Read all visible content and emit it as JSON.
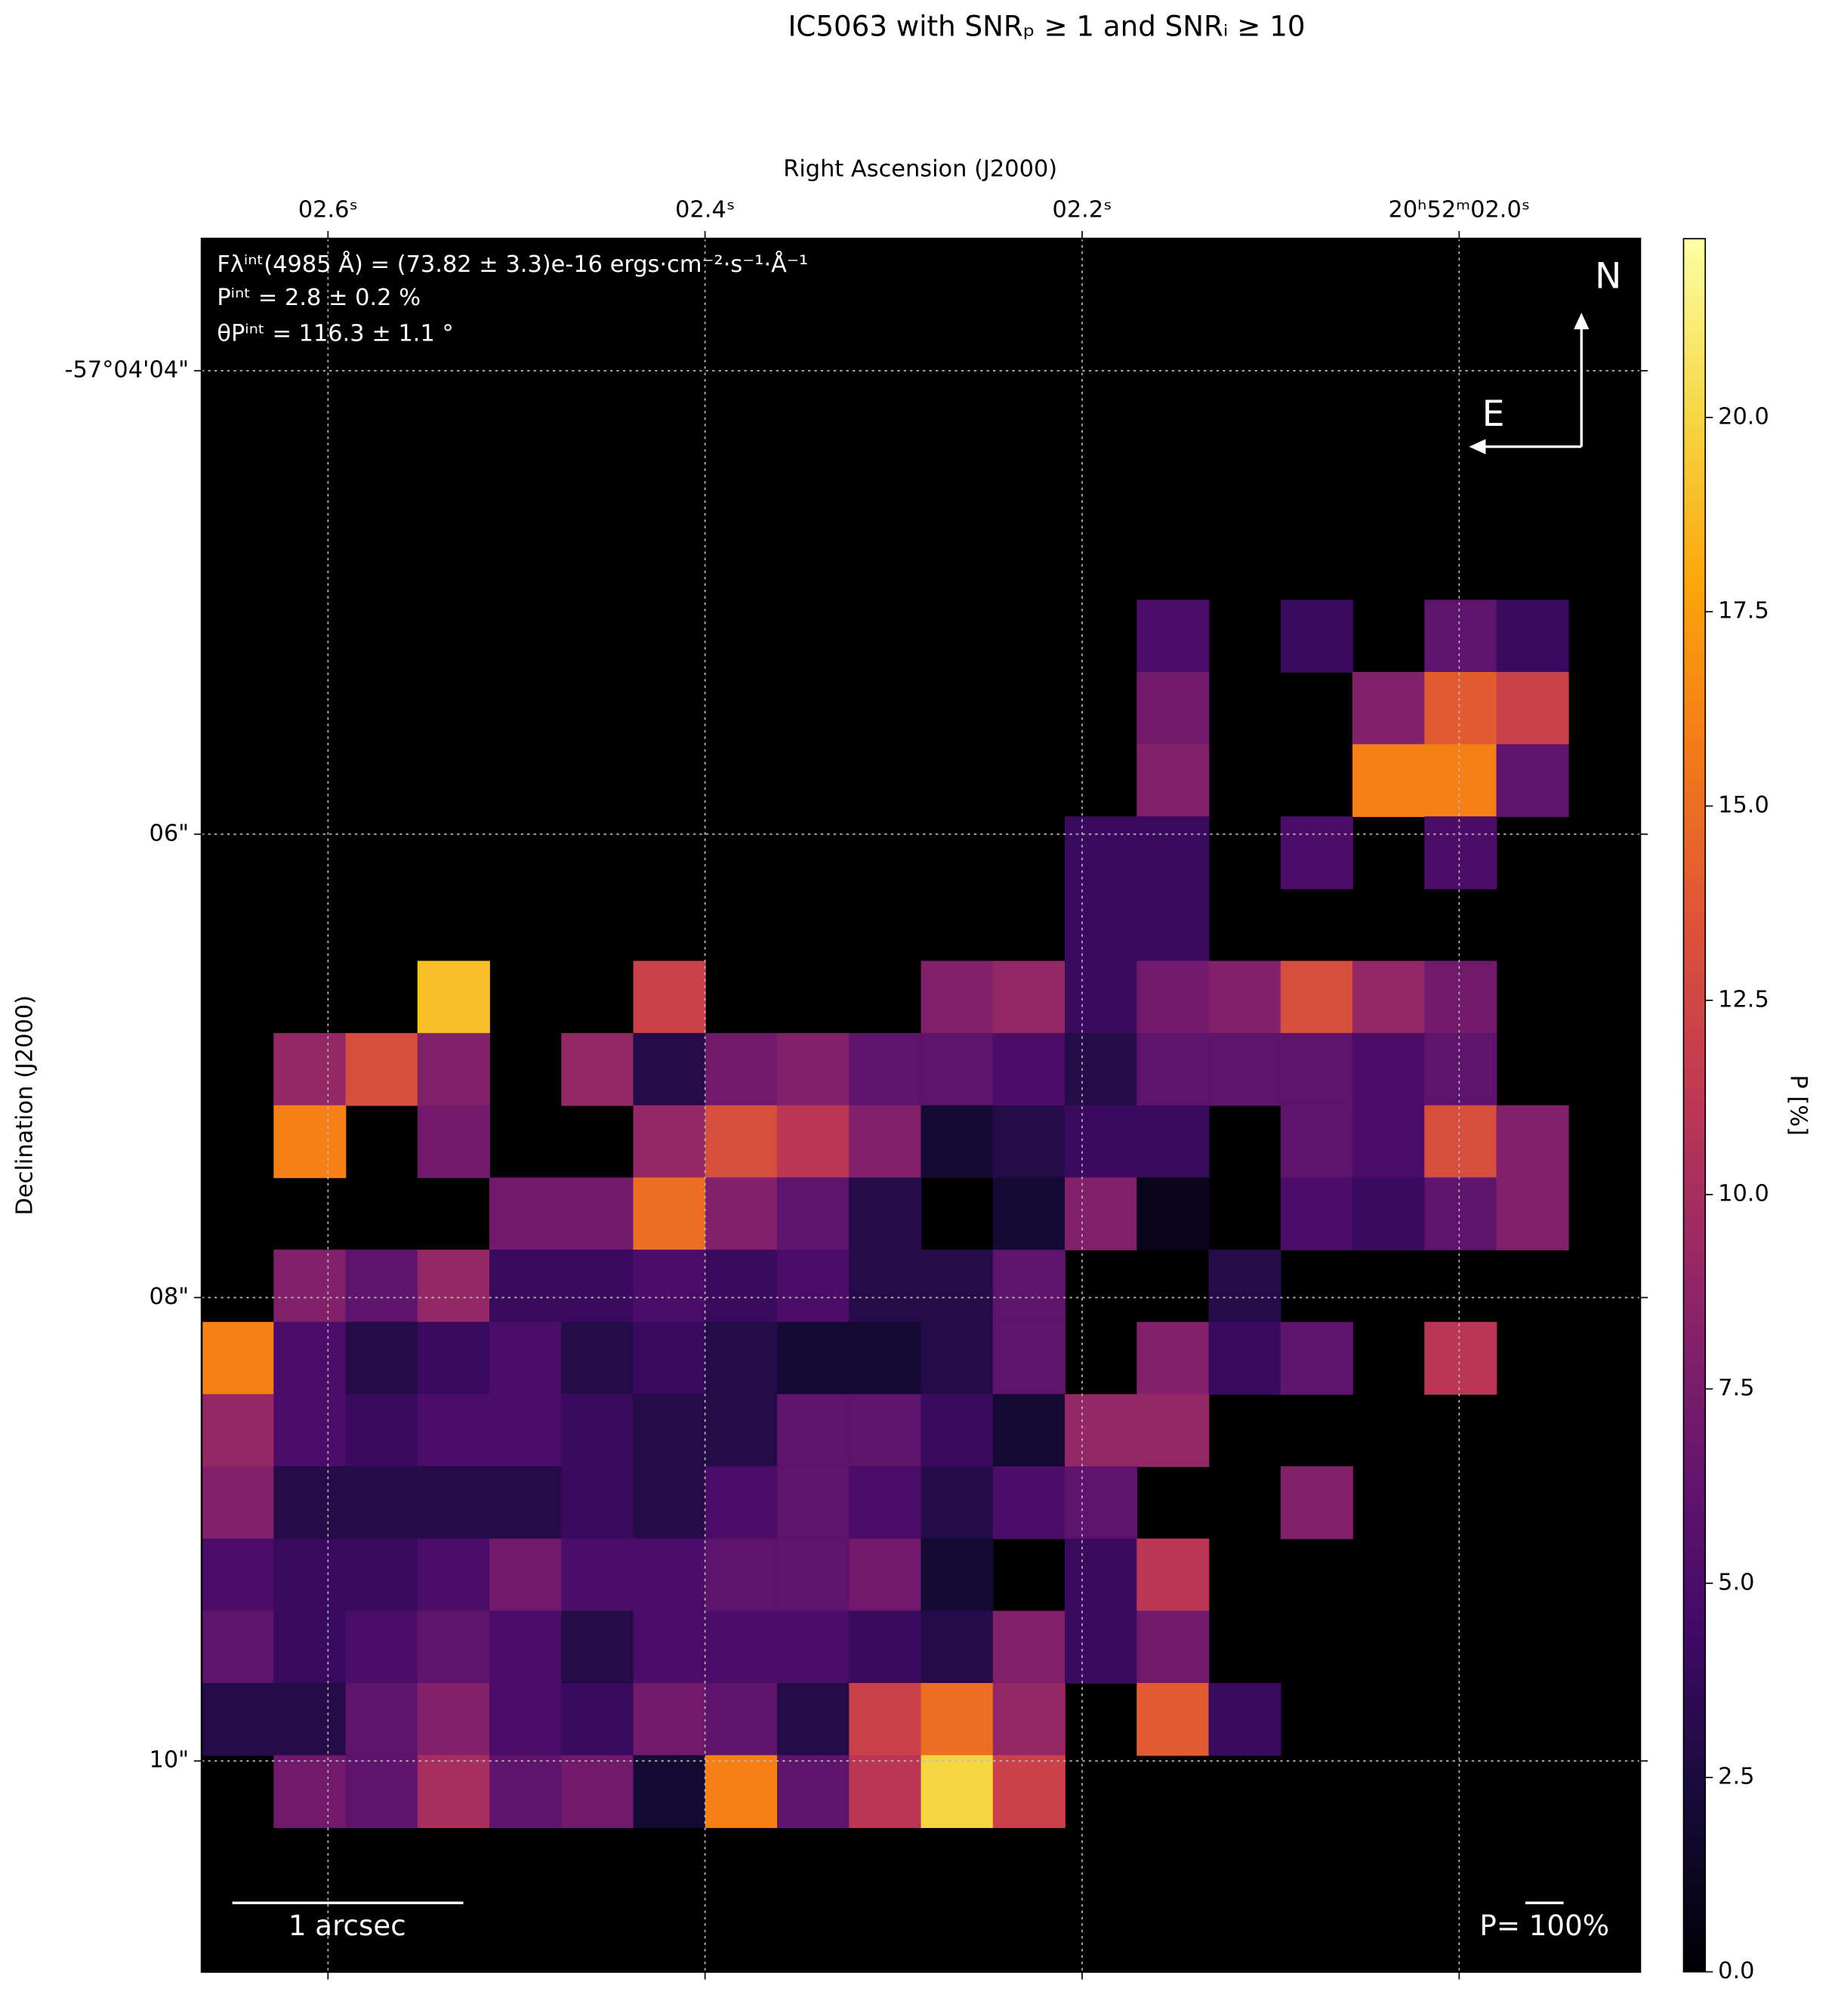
{
  "chart_data": {
    "type": "heatmap",
    "title": "IC5063 with SNRₚ ≥ 1 and SNRᵢ ≥ 10",
    "x_label": "Right Ascension (J2000)",
    "y_label": "Declination (J2000)",
    "colorbar_label": "P [%]",
    "colormap": "inferno",
    "annotations": [
      "Fλⁱⁿᵗ(4985 Å) = (73.82 ± 3.3)e-16 ergs·cm⁻²·s⁻¹·Å⁻¹",
      "Pⁱⁿᵗ = 2.8 ± 0.2 %",
      "θPⁱⁿᵗ = 116.3 ± 1.1 °"
    ],
    "compass": [
      "N",
      "E"
    ],
    "scale_bar": "1 arcsec",
    "vector_scale": "P= 100%",
    "grid": true,
    "xlim": [
      2.667,
      1.904
    ],
    "xticks": [
      {
        "value": 2.6,
        "label": "02.6ˢ"
      },
      {
        "value": 2.4,
        "label": "02.4ˢ"
      },
      {
        "value": 2.2,
        "label": "02.2ˢ"
      },
      {
        "value": 2.0,
        "label": "20ʰ52ᵐ02.0ˢ"
      }
    ],
    "ylim": [
      10.91,
      3.43
    ],
    "yticks": [
      {
        "value": 4,
        "label": "-57°04'04\""
      },
      {
        "value": 6,
        "label": "06\""
      },
      {
        "value": 8,
        "label": "08\""
      },
      {
        "value": 10,
        "label": "10\""
      }
    ],
    "clim": [
      0,
      22.3
    ],
    "cticks": [
      {
        "value": 0,
        "label": "0.0"
      },
      {
        "value": 2.5,
        "label": "2.5"
      },
      {
        "value": 5,
        "label": "5.0"
      },
      {
        "value": 7.5,
        "label": "7.5"
      },
      {
        "value": 10,
        "label": "10.0"
      },
      {
        "value": 12.5,
        "label": "12.5"
      },
      {
        "value": 15,
        "label": "15.0"
      },
      {
        "value": 17.5,
        "label": "17.5"
      },
      {
        "value": 20,
        "label": "20.0"
      }
    ],
    "z": [
      [
        null,
        null,
        null,
        null,
        null,
        null,
        null,
        null,
        null,
        null,
        null,
        null,
        null,
        null,
        null,
        null,
        null,
        null,
        null,
        null
      ],
      [
        null,
        null,
        null,
        null,
        null,
        null,
        null,
        null,
        null,
        null,
        null,
        null,
        null,
        null,
        null,
        null,
        null,
        null,
        null,
        null
      ],
      [
        null,
        null,
        null,
        null,
        null,
        null,
        null,
        null,
        null,
        null,
        null,
        null,
        null,
        null,
        null,
        null,
        null,
        null,
        null,
        null
      ],
      [
        null,
        null,
        null,
        null,
        null,
        null,
        null,
        null,
        null,
        null,
        null,
        null,
        null,
        null,
        null,
        null,
        null,
        null,
        null,
        null
      ],
      [
        null,
        null,
        null,
        null,
        null,
        null,
        null,
        null,
        null,
        null,
        null,
        null,
        null,
        null,
        null,
        null,
        null,
        null,
        null,
        null
      ],
      [
        null,
        null,
        null,
        null,
        null,
        null,
        null,
        null,
        null,
        null,
        null,
        null,
        null,
        5,
        null,
        4,
        null,
        6,
        4,
        null
      ],
      [
        null,
        null,
        null,
        null,
        null,
        null,
        null,
        null,
        null,
        null,
        null,
        null,
        null,
        7,
        null,
        null,
        8,
        14,
        12,
        null
      ],
      [
        null,
        null,
        null,
        null,
        null,
        null,
        null,
        null,
        null,
        null,
        null,
        null,
        null,
        8,
        null,
        null,
        16,
        16,
        6,
        null
      ],
      [
        null,
        null,
        null,
        null,
        null,
        null,
        null,
        null,
        null,
        null,
        null,
        null,
        4,
        4,
        null,
        5,
        null,
        5,
        null,
        null
      ],
      [
        null,
        null,
        null,
        null,
        null,
        null,
        null,
        null,
        null,
        null,
        null,
        null,
        4,
        4,
        null,
        null,
        null,
        null,
        null,
        null
      ],
      [
        null,
        null,
        null,
        19,
        null,
        null,
        12,
        null,
        null,
        null,
        8,
        9,
        4,
        7,
        8,
        13,
        9,
        7,
        null,
        null
      ],
      [
        null,
        9,
        13,
        8,
        null,
        9,
        3,
        7,
        8,
        6,
        6,
        5,
        3,
        6,
        6,
        6,
        5,
        6,
        null,
        null
      ],
      [
        null,
        16,
        null,
        7,
        null,
        null,
        9,
        13,
        11,
        8,
        2,
        3,
        4,
        4,
        null,
        6,
        5,
        13,
        8,
        null
      ],
      [
        null,
        null,
        null,
        null,
        7,
        7,
        15,
        8,
        6,
        3,
        null,
        2,
        8,
        1,
        null,
        5,
        4,
        6,
        8,
        null
      ],
      [
        null,
        8,
        6,
        9,
        4,
        4,
        5,
        4,
        5,
        3,
        3,
        6,
        null,
        null,
        3,
        null,
        null,
        null,
        null,
        null
      ],
      [
        16,
        5,
        3,
        4,
        5,
        3,
        4,
        3,
        2,
        2,
        3,
        6,
        null,
        8,
        4,
        6,
        null,
        11,
        null,
        null
      ],
      [
        9,
        5,
        4,
        5,
        5,
        4,
        3,
        3,
        6,
        6,
        4,
        2,
        9,
        9,
        null,
        null,
        null,
        null,
        null,
        null
      ],
      [
        8,
        3,
        3,
        3,
        3,
        4,
        3,
        5,
        6,
        5,
        3,
        5,
        6,
        null,
        null,
        8,
        null,
        null,
        null,
        null
      ],
      [
        5,
        4,
        4,
        5,
        7,
        5,
        5,
        6,
        6,
        7,
        2,
        null,
        4,
        11,
        null,
        null,
        null,
        null,
        null,
        null
      ],
      [
        6,
        4,
        5,
        6,
        5,
        3,
        5,
        5,
        5,
        4,
        3,
        8,
        4,
        7,
        null,
        null,
        null,
        null,
        null,
        null
      ],
      [
        3,
        3,
        6,
        8,
        5,
        4,
        7,
        6,
        3,
        12,
        15,
        9,
        null,
        14,
        4,
        null,
        null,
        null,
        null,
        null
      ],
      [
        null,
        7,
        6,
        10,
        6,
        7,
        2,
        16,
        6,
        11,
        20,
        12,
        null,
        null,
        null,
        null,
        null,
        null,
        null,
        null
      ],
      [
        null,
        null,
        null,
        null,
        null,
        null,
        null,
        null,
        null,
        null,
        null,
        null,
        null,
        null,
        null,
        null,
        null,
        null,
        null,
        null
      ],
      [
        null,
        null,
        null,
        null,
        null,
        null,
        null,
        null,
        null,
        null,
        null,
        null,
        null,
        null,
        null,
        null,
        null,
        null,
        null,
        null
      ]
    ]
  }
}
